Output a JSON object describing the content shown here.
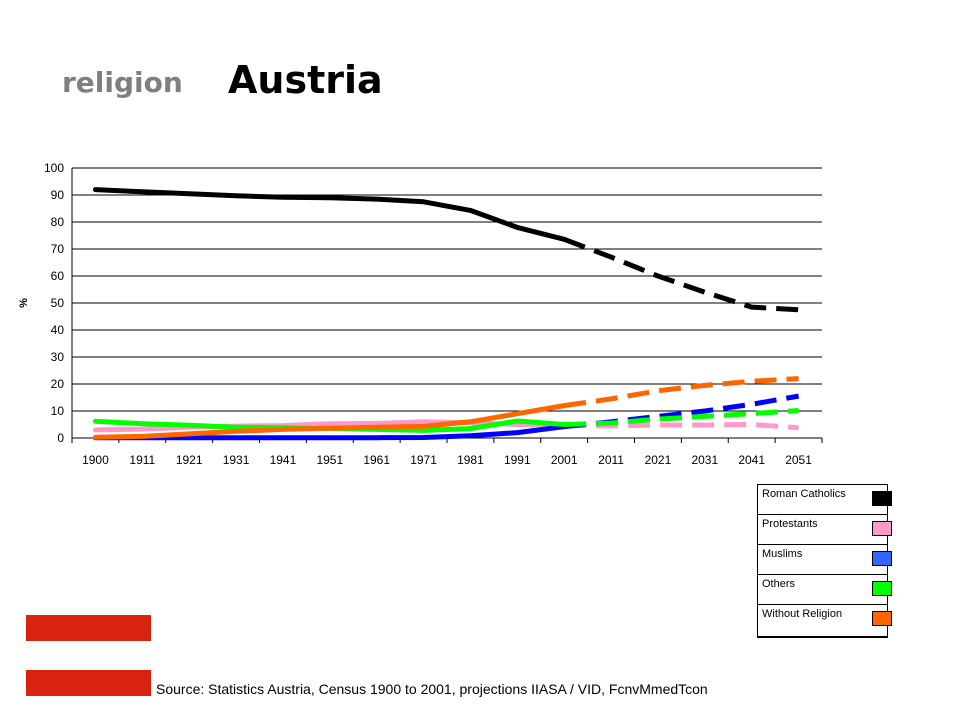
{
  "title": {
    "prefix": "religion",
    "country": "Austria"
  },
  "source_text": "Source: Statistics Austria, Census 1900 to 2001, projections IIASA / VID, FcnvMmedTcon",
  "colors": {
    "flag_red": "#d9230f",
    "roman_catholics": "#000000",
    "protestants": "#ff99cc",
    "muslims": "#0000ff",
    "others": "#00ff00",
    "without_religion": "#ff6600"
  },
  "legend": [
    {
      "label": "Roman Catholics",
      "swatch": "#000000"
    },
    {
      "label": "Protestants",
      "swatch": "#ff99cc"
    },
    {
      "label": "Muslims",
      "swatch": "#3366ff"
    },
    {
      "label": "Others",
      "swatch": "#00ff00"
    },
    {
      "label": "Without Religion",
      "swatch": "#ff6600"
    }
  ],
  "chart_data": {
    "type": "line",
    "title": "Austria",
    "ylabel": "%",
    "xlabel": "",
    "categories": [
      "1900",
      "1911",
      "1921",
      "1931",
      "1941",
      "1951",
      "1961",
      "1971",
      "1981",
      "1991",
      "2001",
      "2011",
      "2021",
      "2031",
      "2041",
      "2051"
    ],
    "ylim": [
      0,
      100
    ],
    "yticks": [
      0,
      10,
      20,
      30,
      40,
      50,
      60,
      70,
      80,
      90,
      100
    ],
    "grid": true,
    "legend_position": "bottom-right",
    "census_until": "2001",
    "projection_from": "2001",
    "series": [
      {
        "name": "Roman Catholics",
        "color": "#000000",
        "values": [
          92,
          91.2,
          90.5,
          89.7,
          89.2,
          89,
          88.5,
          87.5,
          84.3,
          78,
          73.6,
          67,
          60,
          54,
          48.5,
          47.5
        ]
      },
      {
        "name": "Protestants",
        "color": "#ff99cc",
        "values": [
          3,
          3.3,
          4,
          4.4,
          4.6,
          5.3,
          5.4,
          6,
          5.6,
          5,
          4.7,
          4.5,
          4.8,
          4.8,
          5,
          3.8
        ]
      },
      {
        "name": "Muslims",
        "color": "#0000ff",
        "values": [
          0.1,
          0.1,
          0.1,
          0.1,
          0.1,
          0.1,
          0.1,
          0.2,
          0.8,
          2,
          4.2,
          6,
          8,
          10,
          12.5,
          15.5
        ]
      },
      {
        "name": "Others",
        "color": "#00ff00",
        "values": [
          6.2,
          5.3,
          4.7,
          4,
          3.8,
          3.5,
          3.2,
          2.8,
          3.5,
          6.3,
          5,
          5.5,
          7,
          8,
          9,
          10.2
        ]
      },
      {
        "name": "Without Religion",
        "color": "#ff6600",
        "values": [
          0.3,
          0.6,
          1.5,
          2.5,
          3.2,
          3.6,
          4,
          4.3,
          6,
          9,
          12,
          14.5,
          17.5,
          19.5,
          21,
          22
        ]
      }
    ]
  }
}
